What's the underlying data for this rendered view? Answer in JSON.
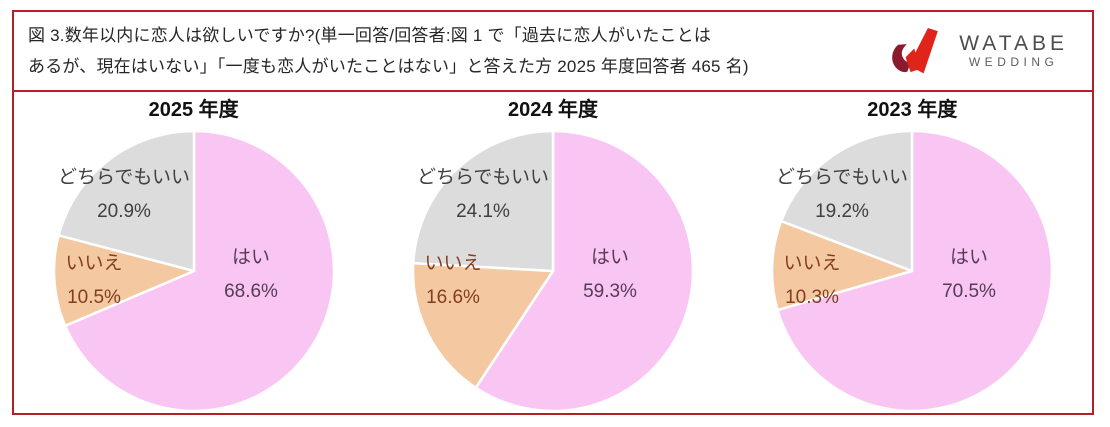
{
  "header": {
    "caption_lines": [
      "図 3.数年以内に恋人は欲しいですか?(単一回答/回答者:図 1 で「過去に恋人がいたことは",
      "あるが、現在はいない」「一度も恋人がいたことはない」と答えた方 2025 年度回答者 465 名)"
    ],
    "logo": {
      "name": "WATABE",
      "sub": "WEDDING"
    }
  },
  "colors": {
    "frame_border": "#B42025",
    "logo_bright_red": "#E0241B",
    "logo_dark_red": "#8C1A2F",
    "caption_text": "#262626"
  },
  "chart_style": {
    "slice_roles": [
      "yes",
      "no",
      "either"
    ],
    "slice_colors": [
      "#F9C6F4",
      "#F4C9A1",
      "#DCDCDC"
    ],
    "label_colors": [
      "#553C55",
      "#823E1E",
      "#404040"
    ],
    "separator_color": "#FFFFFF",
    "start_angle": "12-oclock",
    "direction": "clockwise",
    "legend": "none"
  },
  "chart_data": [
    {
      "type": "pie",
      "title": "2025 年度",
      "labels": [
        "はい",
        "いいえ",
        "どちらでもいい"
      ],
      "values": [
        68.6,
        10.5,
        20.9
      ],
      "value_labels": [
        "68.6%",
        "10.5%",
        "20.9%"
      ]
    },
    {
      "type": "pie",
      "title": "2024 年度",
      "labels": [
        "はい",
        "いいえ",
        "どちらでもいい"
      ],
      "values": [
        59.3,
        16.6,
        24.1
      ],
      "value_labels": [
        "59.3%",
        "16.6%",
        "24.1%"
      ]
    },
    {
      "type": "pie",
      "title": "2023 年度",
      "labels": [
        "はい",
        "いいえ",
        "どちらでもいい"
      ],
      "values": [
        70.5,
        10.3,
        19.2
      ],
      "value_labels": [
        "70.5%",
        "10.3%",
        "19.2%"
      ]
    }
  ]
}
